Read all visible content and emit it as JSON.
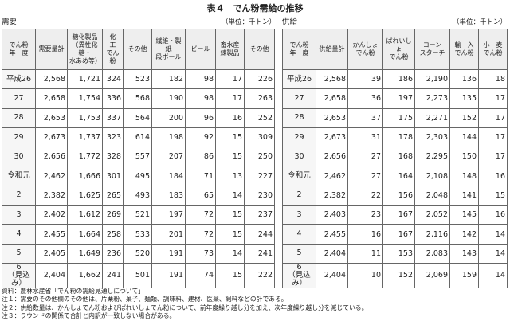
{
  "title": "表４　でん粉需給の推移",
  "left": {
    "caption": "需要",
    "unit": "（単位：千トン）",
    "columns": [
      "でん粉\n年　度",
      "需要量計",
      "糖化製品\n（異性化糖・\n水あめ等）",
      "化　工\nでん粉",
      "その他",
      "繊維・製紙\n段ボール",
      "ビール",
      "畜水産\n練製品",
      "その他"
    ],
    "rows": [
      [
        "平成26",
        "2,568",
        "1,721",
        "324",
        "523",
        "182",
        "98",
        "17",
        "226"
      ],
      [
        "27",
        "2,658",
        "1,754",
        "336",
        "568",
        "190",
        "98",
        "17",
        "263"
      ],
      [
        "28",
        "2,653",
        "1,753",
        "337",
        "564",
        "200",
        "96",
        "16",
        "252"
      ],
      [
        "29",
        "2,673",
        "1,737",
        "323",
        "614",
        "198",
        "92",
        "15",
        "309"
      ],
      [
        "30",
        "2,656",
        "1,772",
        "328",
        "557",
        "207",
        "86",
        "15",
        "250"
      ],
      [
        "令和元",
        "2,462",
        "1,666",
        "301",
        "495",
        "184",
        "71",
        "13",
        "227"
      ],
      [
        "2",
        "2,382",
        "1,625",
        "265",
        "493",
        "183",
        "65",
        "14",
        "230"
      ],
      [
        "3",
        "2,402",
        "1,612",
        "269",
        "521",
        "197",
        "72",
        "15",
        "237"
      ],
      [
        "4",
        "2,455",
        "1,664",
        "258",
        "533",
        "201",
        "72",
        "15",
        "244"
      ],
      [
        "5",
        "2,405",
        "1,649",
        "236",
        "520",
        "191",
        "73",
        "14",
        "241"
      ],
      [
        "6\n（見込み）",
        "2,404",
        "1,662",
        "241",
        "501",
        "191",
        "74",
        "15",
        "222"
      ]
    ]
  },
  "right": {
    "caption": "供給",
    "unit": "（単位：千トン）",
    "columns": [
      "でん粉\n年　度",
      "供給量計",
      "かんしょ\nでん粉",
      "ばれいしょ\nでん粉",
      "コーン\nスターチ",
      "輸　入\nでん粉",
      "小　麦\nでん粉"
    ],
    "rows": [
      [
        "平成26",
        "2,568",
        "39",
        "186",
        "2,190",
        "136",
        "18"
      ],
      [
        "27",
        "2,658",
        "36",
        "197",
        "2,273",
        "135",
        "17"
      ],
      [
        "28",
        "2,653",
        "37",
        "175",
        "2,271",
        "152",
        "17"
      ],
      [
        "29",
        "2,673",
        "31",
        "178",
        "2,303",
        "144",
        "17"
      ],
      [
        "30",
        "2,656",
        "27",
        "168",
        "2,295",
        "150",
        "17"
      ],
      [
        "令和元",
        "2,462",
        "27",
        "164",
        "2,108",
        "148",
        "16"
      ],
      [
        "2",
        "2,382",
        "22",
        "156",
        "2,048",
        "141",
        "15"
      ],
      [
        "3",
        "2,403",
        "23",
        "167",
        "2,052",
        "145",
        "16"
      ],
      [
        "4",
        "2,455",
        "16",
        "167",
        "2,116",
        "142",
        "14"
      ],
      [
        "5",
        "2,404",
        "11",
        "153",
        "2,083",
        "143",
        "14"
      ],
      [
        "6\n（見込み）",
        "2,404",
        "10",
        "152",
        "2,069",
        "159",
        "14"
      ]
    ]
  },
  "notes": [
    "資料：農林水産省「でん粉の需給見通しについて」",
    "注１：需要のその他欄のその他は、片栗粉、菓子、麺類、調味料、建材、医薬、飼料などの計である。",
    "注２：供給数量は、かんしょでん粉およびばれいしょでん粉について、前年度繰り越し分を加え、次年度繰り越し分を減じている。",
    "注３：ラウンドの関係で合計と内訳が一致しない場合がある。"
  ]
}
